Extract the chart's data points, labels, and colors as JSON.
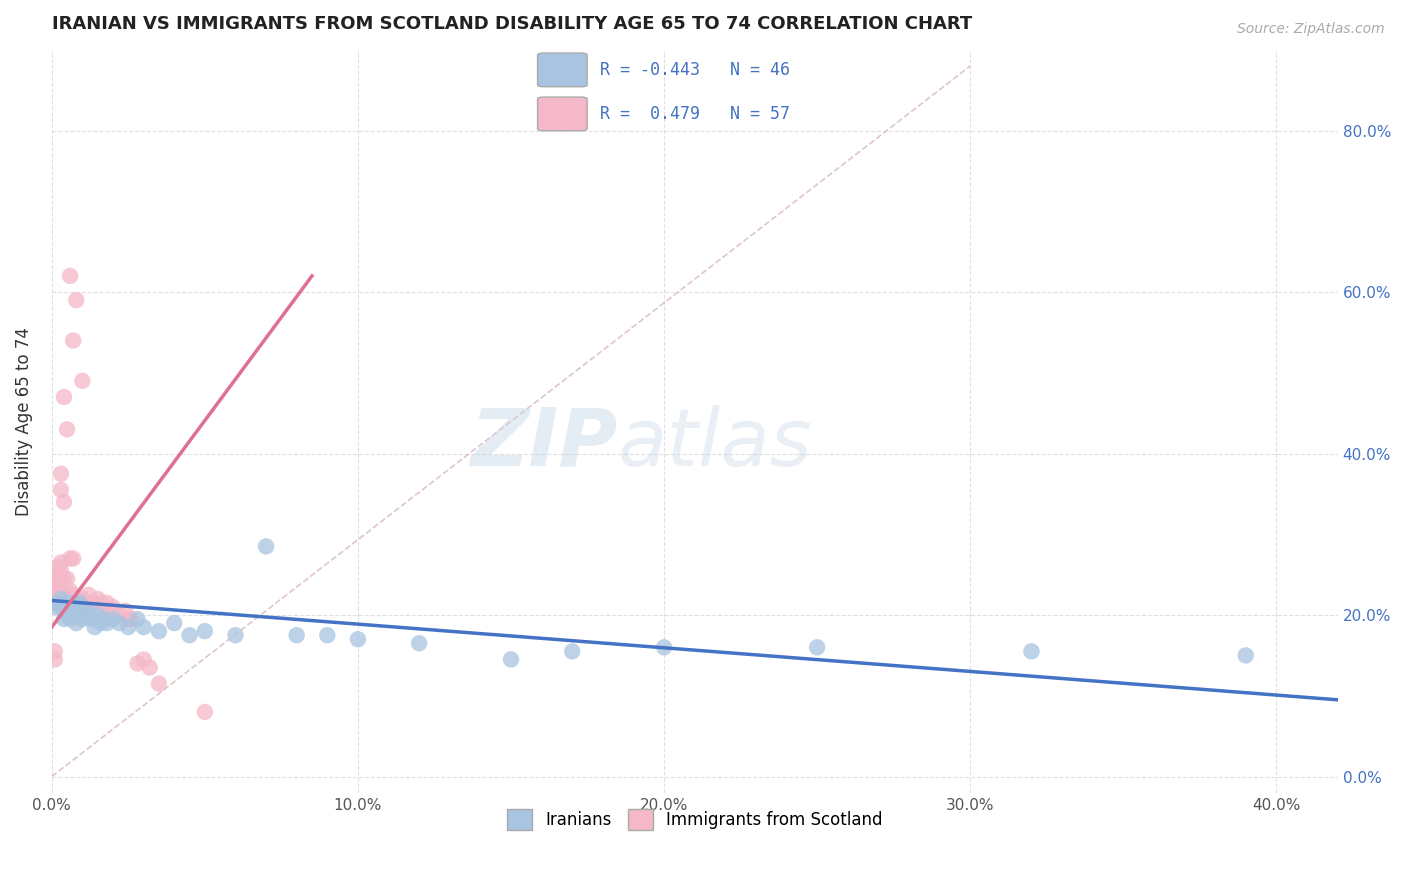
{
  "title": "IRANIAN VS IMMIGRANTS FROM SCOTLAND DISABILITY AGE 65 TO 74 CORRELATION CHART",
  "source": "Source: ZipAtlas.com",
  "ylabel": "Disability Age 65 to 74",
  "xlim": [
    0.0,
    0.42
  ],
  "ylim": [
    -0.02,
    0.9
  ],
  "xticks": [
    0.0,
    0.1,
    0.2,
    0.3,
    0.4
  ],
  "yticks": [
    0.0,
    0.2,
    0.4,
    0.6,
    0.8
  ],
  "xtick_labels": [
    "0.0%",
    "10.0%",
    "20.0%",
    "30.0%",
    "40.0%"
  ],
  "ytick_labels": [
    "0.0%",
    "20.0%",
    "40.0%",
    "60.0%",
    "80.0%"
  ],
  "background_color": "#ffffff",
  "grid_color": "#dddddd",
  "iranians_color": "#a8c4e0",
  "scotland_color": "#f4b8c8",
  "iranians_line_color": "#4472c4",
  "scotland_line_color": "#e07090",
  "ref_line_color": "#d8b8b8",
  "iranians_scatter": [
    [
      0.001,
      0.21
    ],
    [
      0.002,
      0.215
    ],
    [
      0.003,
      0.22
    ],
    [
      0.004,
      0.195
    ],
    [
      0.004,
      0.205
    ],
    [
      0.005,
      0.215
    ],
    [
      0.005,
      0.2
    ],
    [
      0.006,
      0.21
    ],
    [
      0.006,
      0.195
    ],
    [
      0.007,
      0.205
    ],
    [
      0.007,
      0.215
    ],
    [
      0.008,
      0.2
    ],
    [
      0.008,
      0.19
    ],
    [
      0.009,
      0.215
    ],
    [
      0.009,
      0.205
    ],
    [
      0.01,
      0.195
    ],
    [
      0.01,
      0.21
    ],
    [
      0.011,
      0.2
    ],
    [
      0.012,
      0.205
    ],
    [
      0.013,
      0.195
    ],
    [
      0.014,
      0.185
    ],
    [
      0.015,
      0.2
    ],
    [
      0.016,
      0.19
    ],
    [
      0.017,
      0.195
    ],
    [
      0.018,
      0.19
    ],
    [
      0.02,
      0.195
    ],
    [
      0.022,
      0.19
    ],
    [
      0.025,
      0.185
    ],
    [
      0.028,
      0.195
    ],
    [
      0.03,
      0.185
    ],
    [
      0.035,
      0.18
    ],
    [
      0.04,
      0.19
    ],
    [
      0.045,
      0.175
    ],
    [
      0.05,
      0.18
    ],
    [
      0.06,
      0.175
    ],
    [
      0.07,
      0.285
    ],
    [
      0.08,
      0.175
    ],
    [
      0.09,
      0.175
    ],
    [
      0.1,
      0.17
    ],
    [
      0.12,
      0.165
    ],
    [
      0.15,
      0.145
    ],
    [
      0.17,
      0.155
    ],
    [
      0.2,
      0.16
    ],
    [
      0.25,
      0.16
    ],
    [
      0.32,
      0.155
    ],
    [
      0.39,
      0.15
    ]
  ],
  "scotland_scatter": [
    [
      0.001,
      0.155
    ],
    [
      0.001,
      0.145
    ],
    [
      0.001,
      0.215
    ],
    [
      0.001,
      0.225
    ],
    [
      0.001,
      0.235
    ],
    [
      0.002,
      0.215
    ],
    [
      0.002,
      0.22
    ],
    [
      0.002,
      0.23
    ],
    [
      0.002,
      0.24
    ],
    [
      0.002,
      0.25
    ],
    [
      0.002,
      0.26
    ],
    [
      0.003,
      0.21
    ],
    [
      0.003,
      0.22
    ],
    [
      0.003,
      0.23
    ],
    [
      0.003,
      0.245
    ],
    [
      0.003,
      0.255
    ],
    [
      0.003,
      0.265
    ],
    [
      0.003,
      0.355
    ],
    [
      0.003,
      0.375
    ],
    [
      0.004,
      0.215
    ],
    [
      0.004,
      0.225
    ],
    [
      0.004,
      0.245
    ],
    [
      0.004,
      0.34
    ],
    [
      0.004,
      0.47
    ],
    [
      0.005,
      0.22
    ],
    [
      0.005,
      0.245
    ],
    [
      0.005,
      0.43
    ],
    [
      0.006,
      0.23
    ],
    [
      0.006,
      0.27
    ],
    [
      0.006,
      0.62
    ],
    [
      0.007,
      0.225
    ],
    [
      0.007,
      0.27
    ],
    [
      0.007,
      0.54
    ],
    [
      0.008,
      0.22
    ],
    [
      0.008,
      0.59
    ],
    [
      0.009,
      0.215
    ],
    [
      0.01,
      0.22
    ],
    [
      0.01,
      0.49
    ],
    [
      0.011,
      0.215
    ],
    [
      0.012,
      0.225
    ],
    [
      0.013,
      0.215
    ],
    [
      0.014,
      0.21
    ],
    [
      0.015,
      0.22
    ],
    [
      0.016,
      0.215
    ],
    [
      0.017,
      0.21
    ],
    [
      0.018,
      0.215
    ],
    [
      0.019,
      0.205
    ],
    [
      0.02,
      0.21
    ],
    [
      0.022,
      0.2
    ],
    [
      0.024,
      0.205
    ],
    [
      0.025,
      0.195
    ],
    [
      0.026,
      0.195
    ],
    [
      0.028,
      0.14
    ],
    [
      0.03,
      0.145
    ],
    [
      0.032,
      0.135
    ],
    [
      0.035,
      0.115
    ],
    [
      0.05,
      0.08
    ]
  ],
  "iranians_trendline": [
    [
      0.0,
      0.218
    ],
    [
      0.42,
      0.095
    ]
  ],
  "scotland_trendline": [
    [
      0.0,
      0.185
    ],
    [
      0.085,
      0.62
    ]
  ]
}
